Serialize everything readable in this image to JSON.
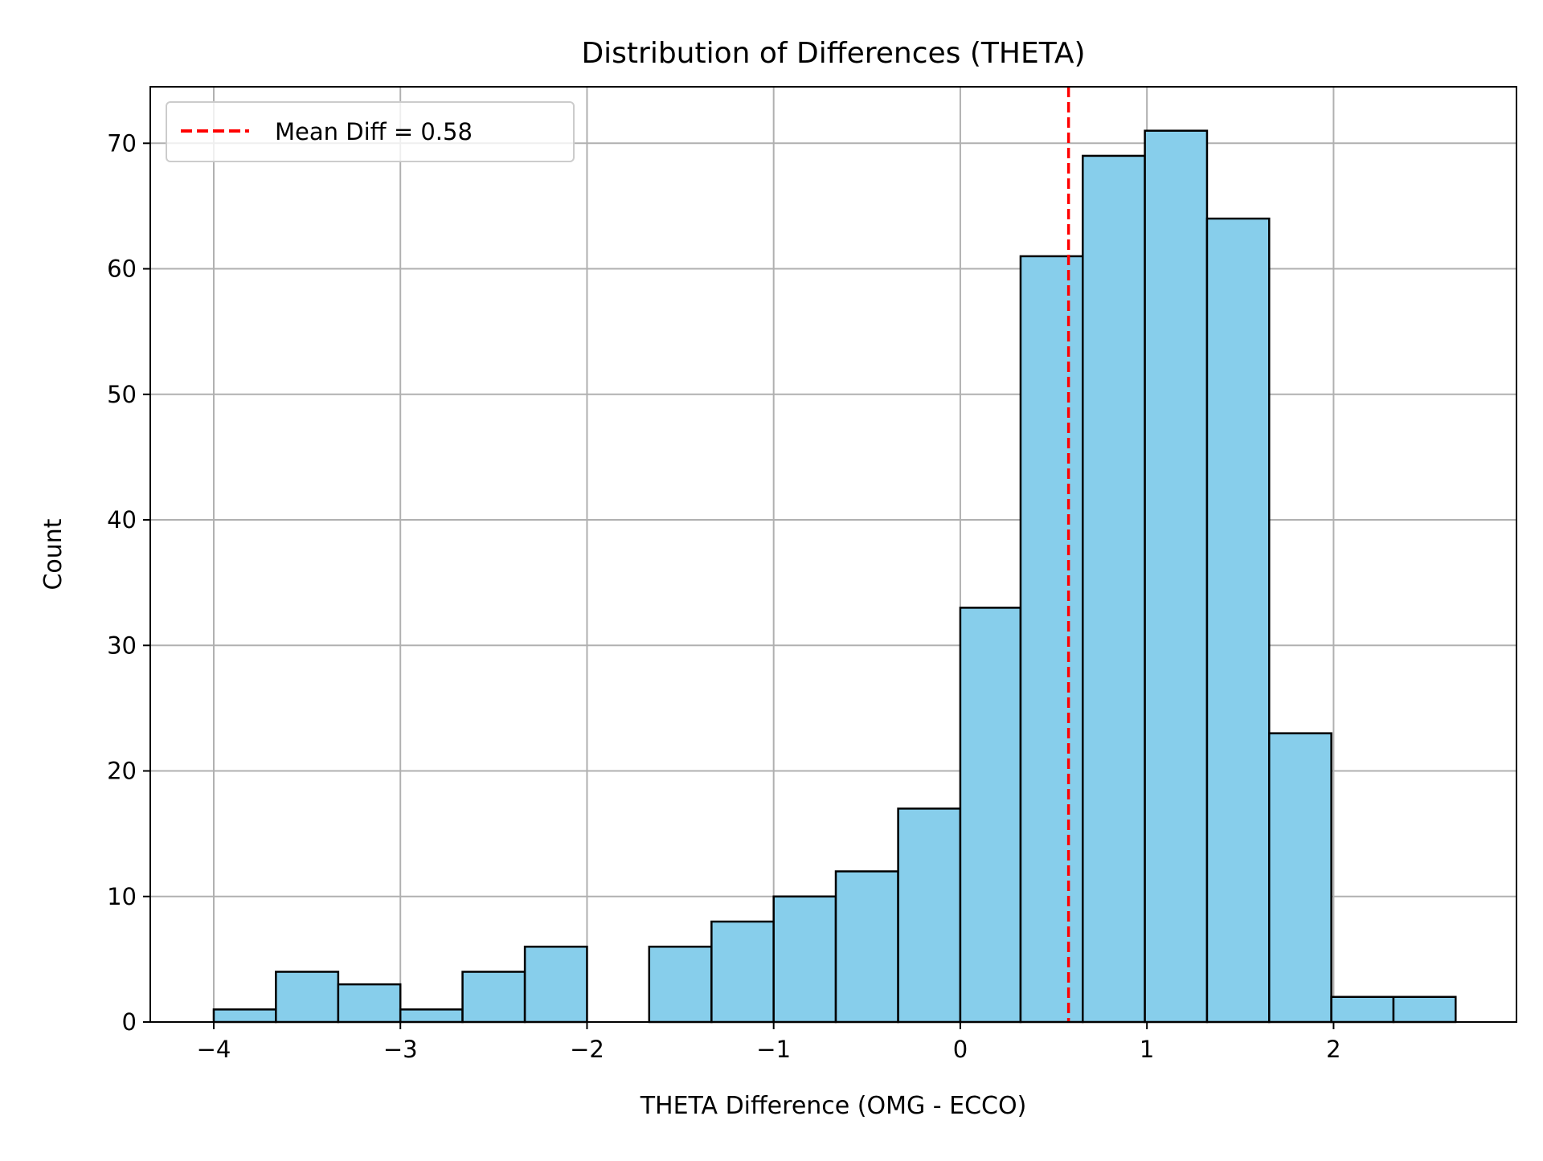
{
  "chart_data": {
    "type": "bar",
    "subtype": "histogram",
    "title": "Distribution of Differences (THETA)",
    "xlabel": "THETA Difference (OMG - ECCO)",
    "ylabel": "Count",
    "xlim": [
      -4.34,
      2.98
    ],
    "ylim": [
      0,
      74.5
    ],
    "xticks": [
      -4,
      -3,
      -2,
      -1,
      0,
      1,
      2
    ],
    "xtick_labels": [
      "−4",
      "−3",
      "−2",
      "−1",
      "0",
      "1",
      "2"
    ],
    "yticks": [
      0,
      10,
      20,
      30,
      40,
      50,
      60,
      70
    ],
    "ytick_labels": [
      "0",
      "10",
      "20",
      "30",
      "40",
      "50",
      "60",
      "70"
    ],
    "grid": true,
    "bin_edges": [
      -4.0,
      -3.667,
      -3.333,
      -3.0,
      -2.667,
      -2.333,
      -2.0,
      -1.667,
      -1.333,
      -1.0,
      -0.667,
      -0.333,
      0.0,
      0.323,
      0.656,
      0.989,
      1.322,
      1.655,
      1.988,
      2.321,
      2.654
    ],
    "counts": [
      1,
      4,
      3,
      1,
      4,
      6,
      0,
      6,
      8,
      10,
      12,
      17,
      33,
      61,
      69,
      71,
      64,
      23,
      2,
      2
    ],
    "bar_color": "#87CEEB",
    "edge_color": "#000000",
    "mean_line": {
      "x": 0.58,
      "color": "#FF0000",
      "style": "dashed",
      "label": "Mean Diff = 0.58"
    },
    "legend": {
      "position": "top-left",
      "entries": [
        "Mean Diff = 0.58"
      ]
    }
  }
}
